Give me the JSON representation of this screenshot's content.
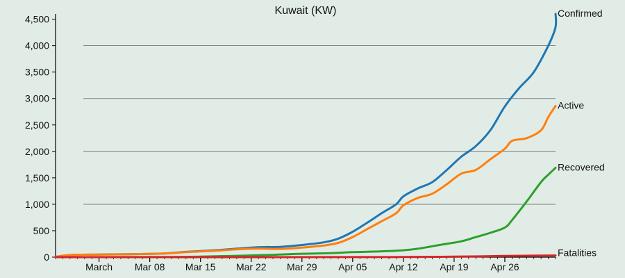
{
  "chart_data": {
    "type": "line",
    "title": "Kuwait (KW)",
    "xlabel": "",
    "ylabel": "",
    "x_ticks": [
      {
        "date": "2020-03-01",
        "label": "March"
      },
      {
        "date": "2020-03-08",
        "label": "Mar 08"
      },
      {
        "date": "2020-03-15",
        "label": "Mar 15"
      },
      {
        "date": "2020-03-22",
        "label": "Mar 22"
      },
      {
        "date": "2020-03-29",
        "label": "Mar 29"
      },
      {
        "date": "2020-04-05",
        "label": "Apr 05"
      },
      {
        "date": "2020-04-12",
        "label": "Apr 12"
      },
      {
        "date": "2020-04-19",
        "label": "Apr 19"
      },
      {
        "date": "2020-04-26",
        "label": "Apr 26"
      }
    ],
    "y_ticks": [
      {
        "value": 0,
        "label": "0"
      },
      {
        "value": 500,
        "label": "500"
      },
      {
        "value": 1000,
        "label": "1,000"
      },
      {
        "value": 1500,
        "label": "1,500"
      },
      {
        "value": 2000,
        "label": "2,000"
      },
      {
        "value": 2500,
        "label": "2,500"
      },
      {
        "value": 3000,
        "label": "3,000"
      },
      {
        "value": 3500,
        "label": "3,500"
      },
      {
        "value": 4000,
        "label": "4,000"
      },
      {
        "value": 4500,
        "label": "4,500"
      }
    ],
    "xlim": [
      "2020-02-24",
      "2020-05-03"
    ],
    "ylim": [
      0,
      4600
    ],
    "gridlines_y": [
      1000,
      2000,
      3000,
      4000
    ],
    "series": [
      {
        "name": "Confirmed",
        "color": "#1f77b4",
        "points": [
          [
            "2020-02-24",
            5
          ],
          [
            "2020-02-26",
            40
          ],
          [
            "2020-03-01",
            50
          ],
          [
            "2020-03-05",
            56
          ],
          [
            "2020-03-10",
            70
          ],
          [
            "2020-03-13",
            100
          ],
          [
            "2020-03-17",
            130
          ],
          [
            "2020-03-20",
            160
          ],
          [
            "2020-03-23",
            189
          ],
          [
            "2020-03-26",
            195
          ],
          [
            "2020-03-29",
            230
          ],
          [
            "2020-04-01",
            280
          ],
          [
            "2020-04-03",
            350
          ],
          [
            "2020-04-05",
            480
          ],
          [
            "2020-04-07",
            650
          ],
          [
            "2020-04-09",
            830
          ],
          [
            "2020-04-11",
            1000
          ],
          [
            "2020-04-12",
            1150
          ],
          [
            "2020-04-14",
            1300
          ],
          [
            "2020-04-16",
            1420
          ],
          [
            "2020-04-18",
            1650
          ],
          [
            "2020-04-20",
            1900
          ],
          [
            "2020-04-22",
            2100
          ],
          [
            "2020-04-24",
            2400
          ],
          [
            "2020-04-26",
            2850
          ],
          [
            "2020-04-28",
            3200
          ],
          [
            "2020-04-30",
            3500
          ],
          [
            "2020-05-02",
            4000
          ],
          [
            "2020-05-03",
            4350
          ],
          [
            "2020-05-03",
            4600
          ]
        ]
      },
      {
        "name": "Active",
        "color": "#ff7f0e",
        "points": [
          [
            "2020-02-24",
            5
          ],
          [
            "2020-02-26",
            40
          ],
          [
            "2020-03-01",
            48
          ],
          [
            "2020-03-05",
            55
          ],
          [
            "2020-03-10",
            68
          ],
          [
            "2020-03-13",
            95
          ],
          [
            "2020-03-17",
            120
          ],
          [
            "2020-03-20",
            148
          ],
          [
            "2020-03-23",
            160
          ],
          [
            "2020-03-26",
            155
          ],
          [
            "2020-03-29",
            180
          ],
          [
            "2020-04-01",
            220
          ],
          [
            "2020-04-03",
            270
          ],
          [
            "2020-04-05",
            380
          ],
          [
            "2020-04-07",
            530
          ],
          [
            "2020-04-09",
            680
          ],
          [
            "2020-04-11",
            830
          ],
          [
            "2020-04-12",
            980
          ],
          [
            "2020-04-14",
            1120
          ],
          [
            "2020-04-16",
            1200
          ],
          [
            "2020-04-18",
            1380
          ],
          [
            "2020-04-20",
            1580
          ],
          [
            "2020-04-22",
            1650
          ],
          [
            "2020-04-24",
            1850
          ],
          [
            "2020-04-26",
            2050
          ],
          [
            "2020-04-27",
            2200
          ],
          [
            "2020-04-29",
            2250
          ],
          [
            "2020-05-01",
            2400
          ],
          [
            "2020-05-02",
            2650
          ],
          [
            "2020-05-03",
            2860
          ]
        ]
      },
      {
        "name": "Recovered",
        "color": "#2ca02c",
        "points": [
          [
            "2020-02-24",
            0
          ],
          [
            "2020-03-10",
            3
          ],
          [
            "2020-03-15",
            10
          ],
          [
            "2020-03-20",
            25
          ],
          [
            "2020-03-25",
            45
          ],
          [
            "2020-03-29",
            65
          ],
          [
            "2020-04-02",
            75
          ],
          [
            "2020-04-05",
            95
          ],
          [
            "2020-04-09",
            110
          ],
          [
            "2020-04-12",
            130
          ],
          [
            "2020-04-14",
            160
          ],
          [
            "2020-04-17",
            230
          ],
          [
            "2020-04-20",
            300
          ],
          [
            "2020-04-22",
            380
          ],
          [
            "2020-04-24",
            460
          ],
          [
            "2020-04-26",
            560
          ],
          [
            "2020-04-27",
            700
          ],
          [
            "2020-04-29",
            1050
          ],
          [
            "2020-05-01",
            1420
          ],
          [
            "2020-05-02",
            1560
          ],
          [
            "2020-05-03",
            1690
          ]
        ]
      },
      {
        "name": "Fatalities",
        "color": "#d62728",
        "points": [
          [
            "2020-02-24",
            0
          ],
          [
            "2020-04-03",
            1
          ],
          [
            "2020-04-12",
            3
          ],
          [
            "2020-04-19",
            9
          ],
          [
            "2020-04-26",
            22
          ],
          [
            "2020-05-03",
            32
          ]
        ]
      }
    ],
    "legend": "series labels at right end of lines",
    "grid": true
  }
}
